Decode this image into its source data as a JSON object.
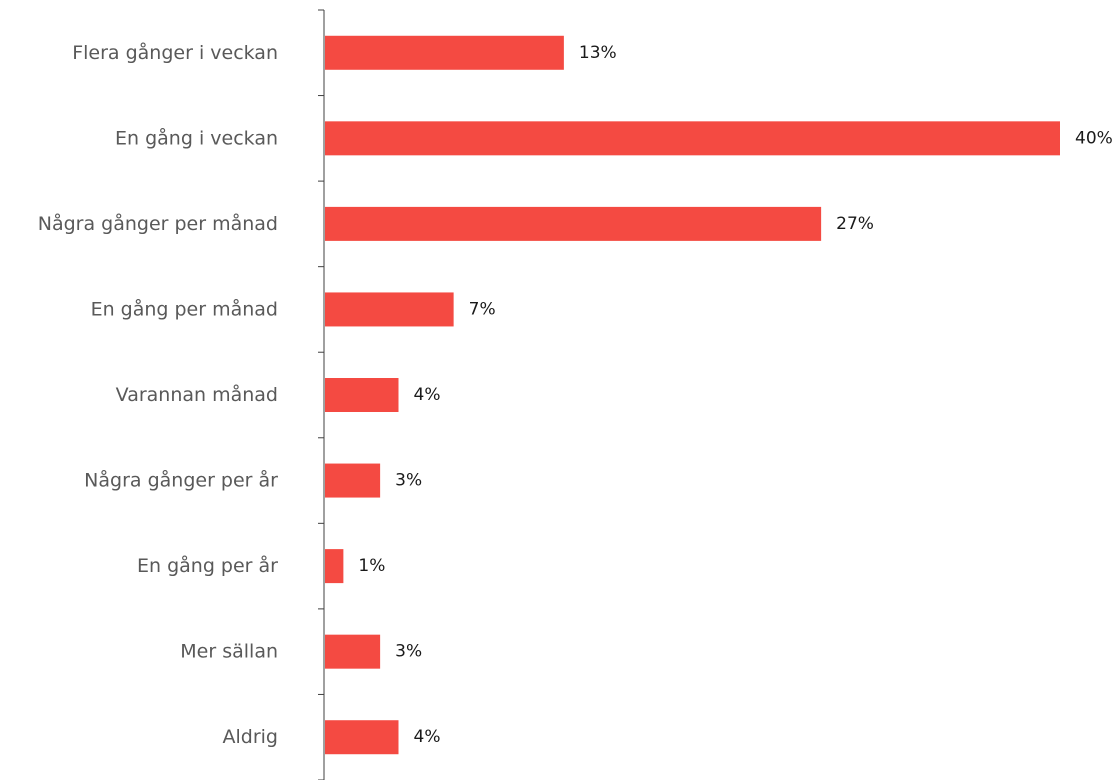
{
  "chart_data": {
    "type": "bar",
    "orientation": "horizontal",
    "categories": [
      "Flera gånger i veckan",
      "En gång i veckan",
      "Några gånger per månad",
      "En gång per månad",
      "Varannan månad",
      "Några gånger per år",
      "En gång per år",
      "Mer sällan",
      "Aldrig"
    ],
    "values": [
      13,
      40,
      27,
      7,
      4,
      3,
      1,
      3,
      4
    ],
    "value_labels": [
      "13%",
      "40%",
      "27%",
      "7%",
      "4%",
      "3%",
      "1%",
      "3%",
      "4%"
    ],
    "unit": "%",
    "xlim": [
      0,
      40
    ],
    "title": "",
    "xlabel": "",
    "ylabel": "",
    "grid": false,
    "legend": "none",
    "colors": {
      "bar": "#f44a42",
      "axis": "#404040",
      "category_text": "#595959",
      "value_text": "#1a1a1a"
    }
  }
}
